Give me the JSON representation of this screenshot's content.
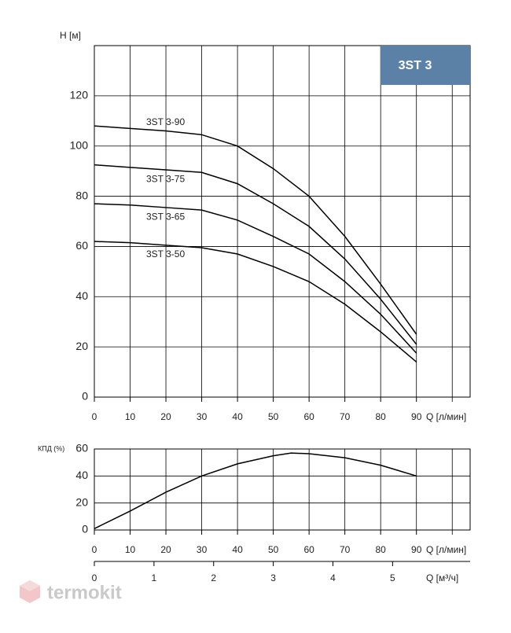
{
  "chart_data": [
    {
      "type": "line",
      "badge": "3ST 3",
      "y_label": "H [м]",
      "x_label": "Q [л/мин]",
      "x": [
        0,
        10,
        20,
        30,
        40,
        50,
        60,
        70,
        80,
        90
      ],
      "series": [
        {
          "name": "3ST 3-90",
          "color": "#000000",
          "values": [
            108,
            107,
            106,
            104.5,
            100,
            91,
            80,
            64,
            45,
            25
          ]
        },
        {
          "name": "3ST 3-75",
          "color": "#000000",
          "values": [
            92.5,
            91.5,
            90.5,
            89.5,
            85,
            77,
            68,
            55,
            39,
            21
          ]
        },
        {
          "name": "3ST 3-65",
          "color": "#000000",
          "values": [
            77,
            76.5,
            75.5,
            74.5,
            70.5,
            64,
            57,
            46,
            33,
            17.5
          ]
        },
        {
          "name": "3ST 3-50",
          "color": "#000000",
          "values": [
            62,
            61.5,
            60.5,
            59.5,
            57,
            52,
            46,
            37,
            26,
            14
          ]
        }
      ],
      "xlim": [
        0,
        105
      ],
      "xticks": [
        0,
        10,
        20,
        30,
        40,
        50,
        60,
        70,
        80,
        90
      ],
      "ylim": [
        0,
        140
      ],
      "yticks": [
        0,
        20,
        40,
        60,
        80,
        100,
        120
      ],
      "grid": true
    },
    {
      "type": "line",
      "y_label": "КПД (%)",
      "x_label": "Q [л/мин]",
      "x": [
        0,
        10,
        20,
        30,
        40,
        50,
        55,
        60,
        70,
        80,
        90
      ],
      "values": [
        1,
        14,
        28,
        40,
        49,
        55,
        57,
        56.5,
        53.5,
        48,
        40
      ],
      "color": "#000000",
      "xlim": [
        0,
        105
      ],
      "xticks": [
        0,
        10,
        20,
        30,
        40,
        50,
        60,
        70,
        80,
        90
      ],
      "ylim": [
        0,
        60
      ],
      "yticks": [
        0,
        20,
        40,
        60
      ],
      "grid": true,
      "x2lim": [
        0,
        6.3
      ],
      "x2ticks": [
        0,
        1,
        2,
        3,
        4,
        5
      ],
      "x2_label": "Q [м³/ч]"
    }
  ],
  "watermark": "termokit"
}
